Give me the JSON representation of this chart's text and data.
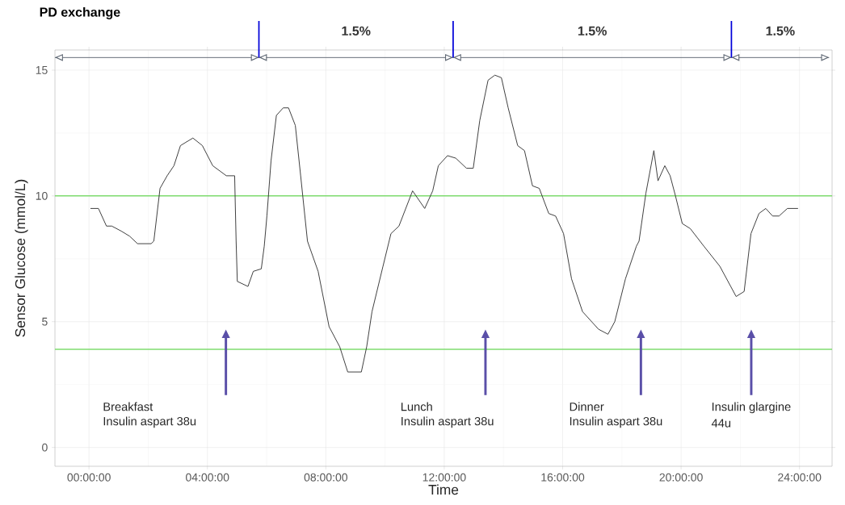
{
  "chart_data": {
    "type": "line",
    "title": "PD exchange",
    "xlabel": "Time",
    "ylabel": "Sensor Glucose (mmol/L)",
    "xlim": [
      -1.15,
      25.1
    ],
    "ylim": [
      -0.75,
      15.8
    ],
    "xticks": [
      {
        "value": 0,
        "label": "00:00:00"
      },
      {
        "value": 4,
        "label": "04:00:00"
      },
      {
        "value": 8,
        "label": "08:00:00"
      },
      {
        "value": 12,
        "label": "12:00:00"
      },
      {
        "value": 16,
        "label": "16:00:00"
      },
      {
        "value": 20,
        "label": "20:00:00"
      },
      {
        "value": 24,
        "label": "24:00:00"
      }
    ],
    "yticks": [
      0,
      5,
      10,
      15
    ],
    "grid": true,
    "series": [
      {
        "color": "#333333",
        "x": [
          0.05,
          0.32,
          0.59,
          0.77,
          1.09,
          1.37,
          1.64,
          2.1,
          2.19,
          2.4,
          2.64,
          2.87,
          3.09,
          3.51,
          3.83,
          4.18,
          4.64,
          4.92,
          4.97,
          5.01,
          5.37,
          5.55,
          5.82,
          5.92,
          6.01,
          6.15,
          6.33,
          6.56,
          6.74,
          6.97,
          7.15,
          7.38,
          7.74,
          8.11,
          8.47,
          8.74,
          9.2,
          9.38,
          9.56,
          9.93,
          10.2,
          10.47,
          10.93,
          11.34,
          11.61,
          11.8,
          12.11,
          12.39,
          12.75,
          12.98,
          13.2,
          13.48,
          13.71,
          13.93,
          14.16,
          14.48,
          14.71,
          14.98,
          15.21,
          15.53,
          15.76,
          16.03,
          16.3,
          16.67,
          17.21,
          17.53,
          17.76,
          18.12,
          18.49,
          18.58,
          18.81,
          19.08,
          19.22,
          19.45,
          19.63,
          19.81,
          20.04,
          20.31,
          20.77,
          21.31,
          21.86,
          22.13,
          22.36,
          22.63,
          22.86,
          23.09,
          23.31,
          23.59,
          23.95
        ],
        "values": [
          9.5,
          9.5,
          8.8,
          8.8,
          8.6,
          8.4,
          8.1,
          8.1,
          8.2,
          10.3,
          10.8,
          11.2,
          12.0,
          12.3,
          12.0,
          11.2,
          10.8,
          10.8,
          8.2,
          6.6,
          6.4,
          7.0,
          7.1,
          8.0,
          9.2,
          11.4,
          13.2,
          13.5,
          13.5,
          12.8,
          10.8,
          8.2,
          7.0,
          4.8,
          4.0,
          3.0,
          3.0,
          4.0,
          5.4,
          7.2,
          8.5,
          8.8,
          10.2,
          9.5,
          10.2,
          11.2,
          11.6,
          11.5,
          11.1,
          11.1,
          13.0,
          14.6,
          14.8,
          14.7,
          13.5,
          12.0,
          11.8,
          10.4,
          10.3,
          9.3,
          9.2,
          8.5,
          6.7,
          5.4,
          4.7,
          4.5,
          5.0,
          6.7,
          8.0,
          8.2,
          10.1,
          11.8,
          10.6,
          11.2,
          10.8,
          10.0,
          8.9,
          8.7,
          8.0,
          7.2,
          6.0,
          6.2,
          8.5,
          9.3,
          9.5,
          9.2,
          9.2,
          9.5,
          9.5
        ]
      },
      {
        "color": "#5b6470",
        "x": [
          -1.15,
          5.74,
          12.3,
          21.7,
          25.0
        ],
        "values": [
          15.5,
          15.5,
          15.5,
          15.5,
          15.5
        ]
      }
    ],
    "ref_lines": [
      {
        "axis": "y",
        "value": 10,
        "color": "#7fdc6f"
      },
      {
        "axis": "y",
        "value": 3.9,
        "color": "#7fdc6f"
      }
    ],
    "annotations": [
      {
        "text": "1.5%",
        "x": 9.02,
        "y": 15.5
      },
      {
        "text": "1.5%",
        "x": 17.0,
        "y": 15.5
      },
      {
        "text": "1.5%",
        "x": 23.35,
        "y": 15.5
      },
      "Breakfast",
      "Insulin aspart 38u",
      "Lunch",
      "Insulin aspart 38u",
      "Dinner",
      "Insulin aspart 38u",
      "Insulin glargine",
      "44u"
    ]
  }
}
